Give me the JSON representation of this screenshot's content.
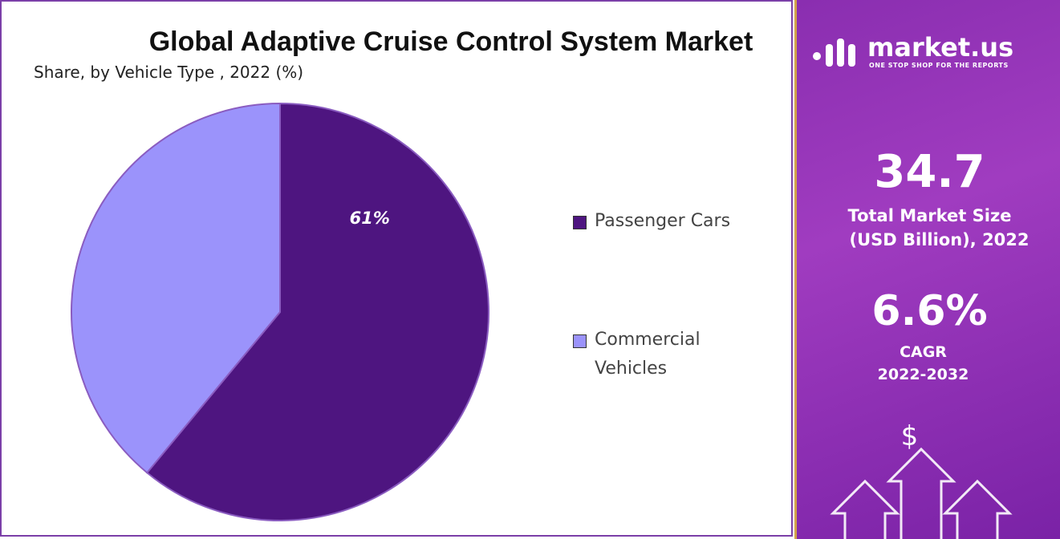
{
  "chart_data": {
    "type": "pie",
    "title": "Global Adaptive Cruise Control System Market",
    "subtitle": "Share, by Vehicle Type , 2022 (%)",
    "categories": [
      "Passenger Cars",
      "Commercial Vehicles"
    ],
    "values": [
      61,
      39
    ],
    "value_labels": [
      "61%",
      null
    ],
    "colors": [
      "#4e1580",
      "#9b93fb"
    ],
    "legend": "right"
  },
  "panel": {
    "brand": "market.us",
    "tagline": "ONE STOP SHOP FOR THE REPORTS",
    "market_size": "34.7",
    "market_size_label": [
      "Total Market Size",
      "(USD Billion), 2022"
    ],
    "cagr": "6.6%",
    "cagr_label": [
      "CAGR",
      "2022-2032"
    ],
    "icon": "$"
  }
}
